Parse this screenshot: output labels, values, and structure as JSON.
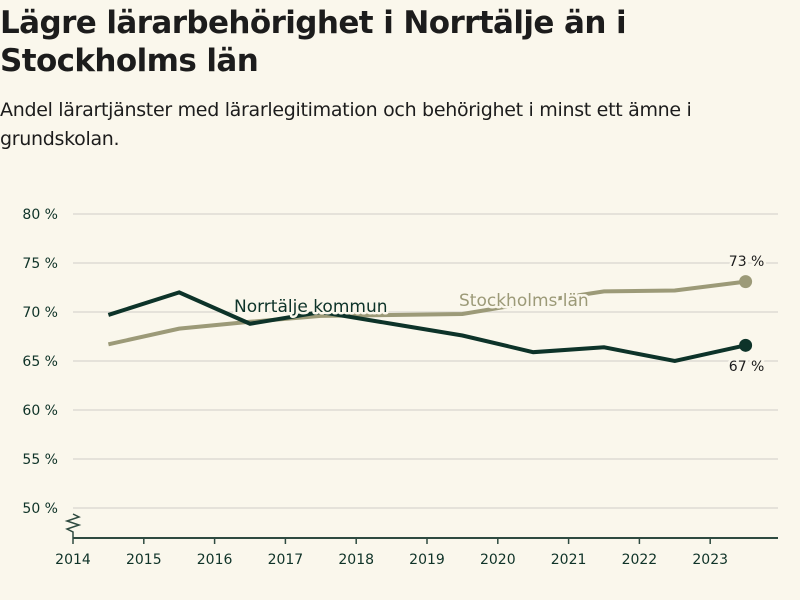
{
  "header": {
    "title": "Lägre lärarbehörighet i Norrtälje än i Stockholms län",
    "subtitle": "Andel lärartjänster med lärarlegitimation och behörighet i minst ett ämne i grundskolan."
  },
  "colors": {
    "background": "#faf7ec",
    "norrtalje": "#0d3329",
    "stockholm": "#9c9a78",
    "grid": "#dedcd4",
    "axis": "#2e4a40"
  },
  "chart_data": {
    "type": "line",
    "title": "Lägre lärarbehörighet i Norrtälje än i Stockholms län",
    "subtitle": "Andel lärartjänster med lärarlegitimation och behörighet i minst ett ämne i grundskolan.",
    "xlabel": "",
    "ylabel": "",
    "x": [
      2014,
      2015,
      2016,
      2017,
      2018,
      2019,
      2020,
      2021,
      2022,
      2023
    ],
    "x_tick_labels": [
      "2014",
      "2015",
      "2016",
      "2017",
      "2018",
      "2019",
      "2020",
      "2021",
      "2022",
      "2023"
    ],
    "y_ticks": [
      50,
      55,
      60,
      65,
      70,
      75,
      80
    ],
    "y_tick_labels": [
      "50 %",
      "55 %",
      "60 %",
      "65 %",
      "70 %",
      "75 %",
      "80 %"
    ],
    "ylim": [
      45.5,
      80
    ],
    "xlim": [
      2014,
      2024
    ],
    "grid": true,
    "axis_break": true,
    "series": [
      {
        "name": "Norrtälje kommun",
        "values": [
          69.7,
          72.0,
          68.8,
          70.0,
          68.8,
          67.6,
          65.9,
          66.4,
          65.0,
          66.6
        ],
        "end_label": "67 %"
      },
      {
        "name": "Stockholms län",
        "values": [
          66.7,
          68.3,
          69.0,
          69.6,
          69.7,
          69.8,
          71.0,
          72.1,
          72.2,
          73.1
        ],
        "end_label": "73 %"
      }
    ],
    "legend": "inline labels on lines"
  }
}
